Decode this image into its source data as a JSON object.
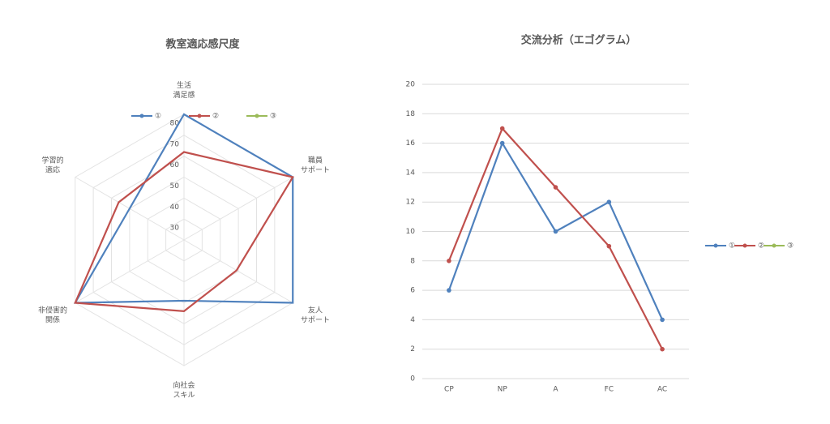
{
  "chart_data": [
    {
      "type": "radar",
      "title": "教室適応感尺度",
      "categories": [
        "生活\n満足感",
        "職員\nサポート",
        "友人\nサポート",
        "向社会\nスキル",
        "非侵害的\n関係",
        "学習的\n適応"
      ],
      "ylim": [
        20,
        80
      ],
      "yticks": [
        30,
        40,
        50,
        60,
        70,
        80
      ],
      "grid": true,
      "legend": "top",
      "series": [
        {
          "name": "①",
          "color": "#4f81bd",
          "values": [
            80,
            80,
            80,
            49,
            80,
            50
          ]
        },
        {
          "name": "②",
          "color": "#c0504d",
          "values": [
            62,
            80,
            49,
            54,
            80,
            56
          ]
        },
        {
          "name": "③",
          "color": "#9bbb59",
          "values": [
            null,
            null,
            null,
            null,
            null,
            null
          ]
        }
      ]
    },
    {
      "type": "line",
      "title": "交流分析（エゴグラム）",
      "categories": [
        "CP",
        "NP",
        "A",
        "FC",
        "AC"
      ],
      "ylim": [
        0,
        20
      ],
      "yticks": [
        0,
        2,
        4,
        6,
        8,
        10,
        12,
        14,
        16,
        18,
        20
      ],
      "grid": true,
      "legend": "right",
      "series": [
        {
          "name": "①",
          "color": "#4f81bd",
          "values": [
            6,
            16,
            10,
            12,
            4
          ]
        },
        {
          "name": "②",
          "color": "#c0504d",
          "values": [
            8,
            17,
            13,
            9,
            2
          ]
        },
        {
          "name": "③",
          "color": "#9bbb59",
          "values": [
            null,
            null,
            null,
            null,
            null
          ]
        }
      ]
    }
  ]
}
